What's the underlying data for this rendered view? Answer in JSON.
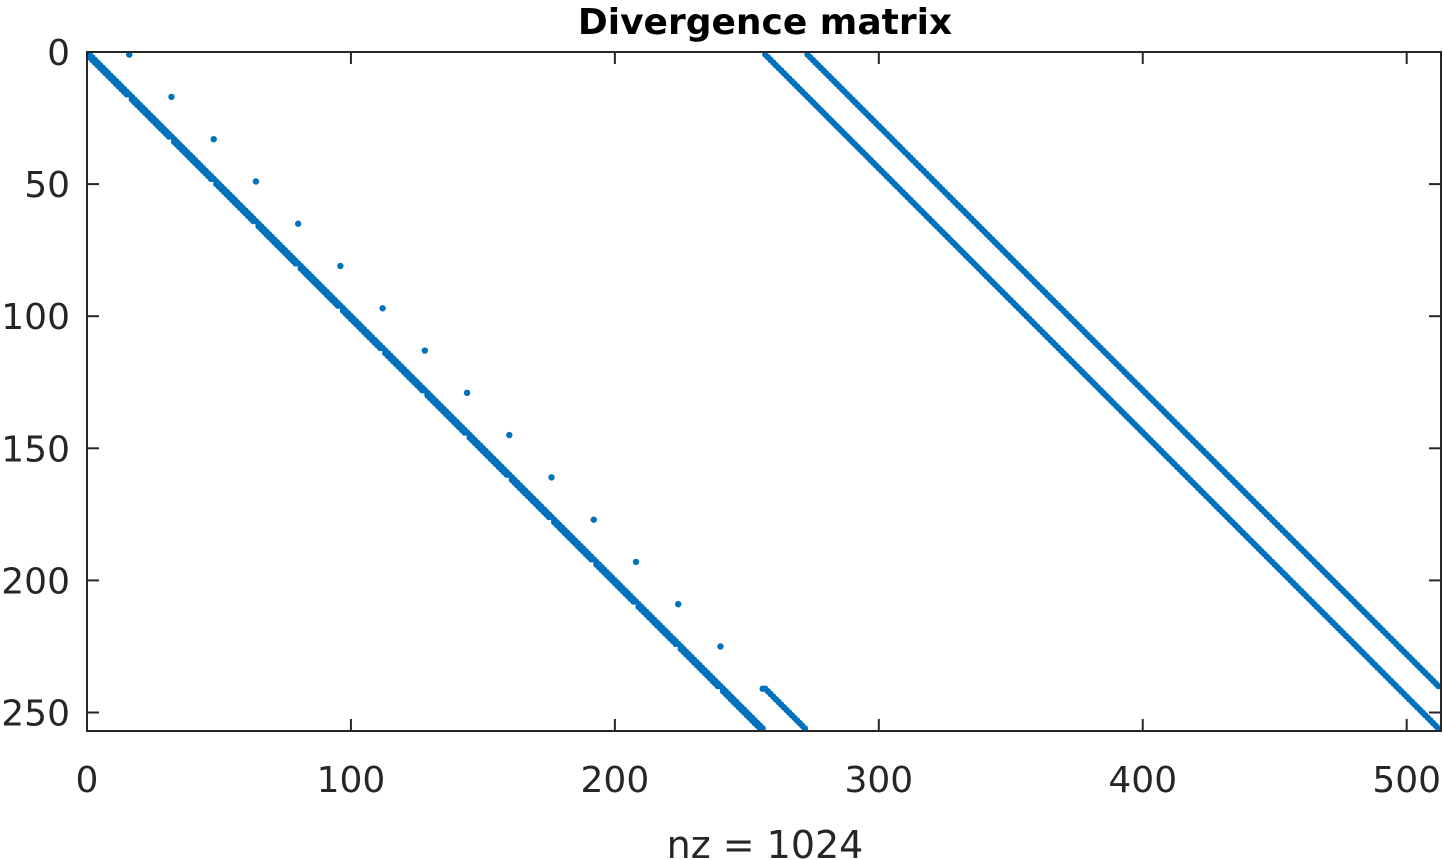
{
  "chart_data": {
    "type": "scatter",
    "title": "Divergence matrix",
    "xlabel": "nz = 1024",
    "ylabel": "",
    "xlim": [
      0,
      513
    ],
    "ylim": [
      0,
      257
    ],
    "y_reversed": true,
    "grid": false,
    "marker_color": "#0072BD",
    "xticks": [
      0,
      100,
      200,
      300,
      400,
      500
    ],
    "yticks": [
      0,
      50,
      100,
      150,
      200,
      250
    ],
    "nnz": 1024,
    "structure": {
      "rows": 256,
      "cols": 512,
      "grid_n": 16,
      "left_block": {
        "col_offset": 0,
        "main_diagonal": true,
        "sub_diagonal_gap": 1,
        "wrap_pattern": "x-direction periodic"
      },
      "right_block": {
        "col_offset": 256,
        "main_diagonal": true,
        "super_diagonal_offset": 16,
        "wrap_pattern": "y-direction periodic"
      }
    }
  }
}
